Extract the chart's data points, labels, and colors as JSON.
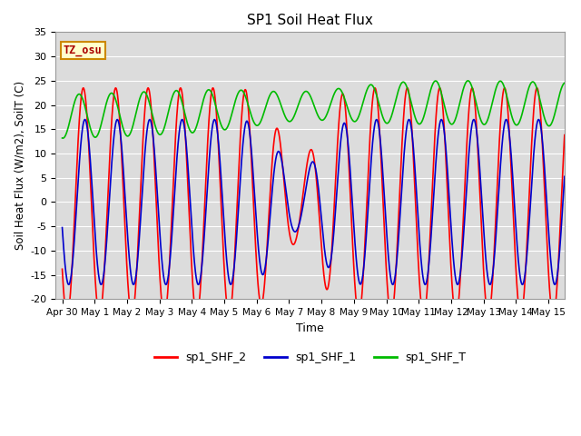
{
  "title": "SP1 Soil Heat Flux",
  "xlabel": "Time",
  "ylabel": "Soil Heat Flux (W/m2), SoilT (C)",
  "ylim": [
    -20,
    35
  ],
  "xlim_start": -0.2,
  "xlim_end": 15.5,
  "xtick_positions": [
    0,
    1,
    2,
    3,
    4,
    5,
    6,
    7,
    8,
    9,
    10,
    11,
    12,
    13,
    14,
    15
  ],
  "xtick_labels": [
    "Apr 30",
    "May 1",
    "May 2",
    "May 3",
    "May 4",
    "May 5",
    "May 6",
    "May 7",
    "May 8",
    "May 9",
    "May 10",
    "May 11",
    "May 12",
    "May 13",
    "May 14",
    "May 15"
  ],
  "ytick_positions": [
    -20,
    -15,
    -10,
    -5,
    0,
    5,
    10,
    15,
    20,
    25,
    30,
    35
  ],
  "colors": {
    "sp1_SHF_2": "#ff0000",
    "sp1_SHF_1": "#0000cd",
    "sp1_SHF_T": "#00bb00",
    "background": "#dcdcdc",
    "tz_box_bg": "#ffffcc",
    "tz_box_border": "#cc8800"
  },
  "tz_label": "TZ_osu",
  "legend_entries": [
    "sp1_SHF_2",
    "sp1_SHF_1",
    "sp1_SHF_T"
  ],
  "grid_color": "#ffffff",
  "linewidth": 1.2
}
